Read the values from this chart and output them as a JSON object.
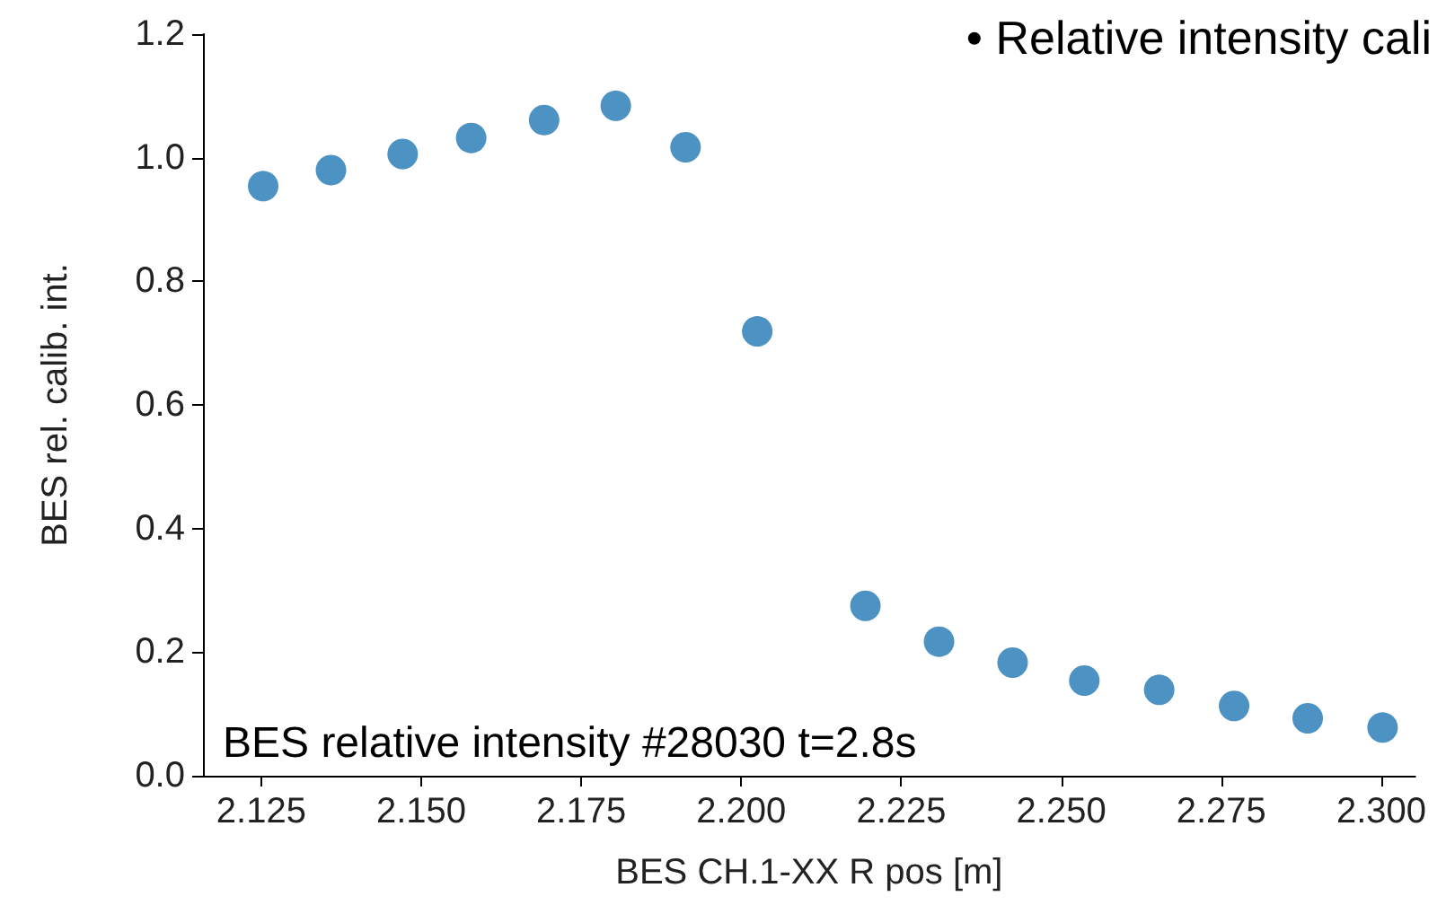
{
  "chart_data": {
    "type": "scatter",
    "xlabel": "BES CH.1-XX R pos [m]",
    "ylabel": "BES rel. calib. int.",
    "x": [
      2.1253,
      2.1359,
      2.1471,
      2.1578,
      2.1692,
      2.1804,
      2.1913,
      2.2025,
      2.2194,
      2.2309,
      2.2424,
      2.2536,
      2.2653,
      2.277,
      2.2885,
      2.3002
    ],
    "values": [
      0.954,
      0.98,
      1.006,
      1.032,
      1.061,
      1.084,
      1.017,
      0.719,
      0.275,
      0.217,
      0.183,
      0.154,
      0.139,
      0.113,
      0.093,
      0.078
    ],
    "color": "#1f77b4",
    "marker": "circle",
    "xlim": [
      2.1159,
      2.3053
    ],
    "xticks": [
      2.125,
      {
        "value": 2.15,
        "label": "2.150"
      },
      2.175,
      {
        "value": 2.2,
        "label": "2.200"
      },
      2.225,
      {
        "value": 2.25,
        "label": "2.250"
      },
      2.275,
      {
        "value": 2.3,
        "label": "2.300"
      }
    ],
    "ylim": [
      0,
      1.2
    ],
    "yticks": [
      {
        "value": 0,
        "label": "0.0"
      },
      0.2,
      0.4,
      0.6,
      0.8,
      {
        "value": 1,
        "label": "1.0"
      },
      1.2
    ],
    "grid": false,
    "annotations": [
      "BES relative intensity #28030 t=2.8s",
      "• Relative intensity cali"
    ]
  }
}
